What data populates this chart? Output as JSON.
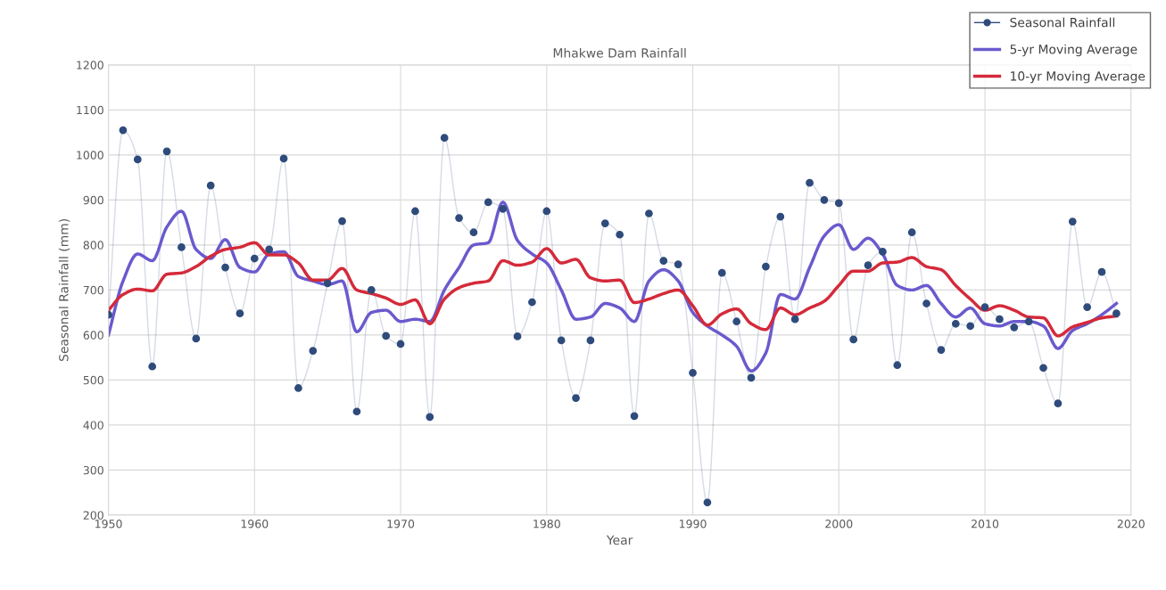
{
  "chart_data": {
    "type": "line",
    "title": "Mhakwe Dam Rainfall",
    "xlabel": "Year",
    "ylabel": "Seasonal Rainfall (mm)",
    "x": [
      1950,
      1951,
      1952,
      1953,
      1954,
      1955,
      1956,
      1957,
      1958,
      1959,
      1960,
      1961,
      1962,
      1963,
      1964,
      1965,
      1966,
      1967,
      1968,
      1969,
      1970,
      1971,
      1972,
      1973,
      1974,
      1975,
      1976,
      1977,
      1978,
      1979,
      1980,
      1981,
      1982,
      1983,
      1984,
      1985,
      1986,
      1987,
      1988,
      1989,
      1990,
      1991,
      1992,
      1993,
      1994,
      1995,
      1996,
      1997,
      1998,
      1999,
      2000,
      2001,
      2002,
      2003,
      2004,
      2005,
      2006,
      2007,
      2008,
      2009,
      2010,
      2011,
      2012,
      2013,
      2014,
      2015,
      2016,
      2017,
      2018,
      2019
    ],
    "series": [
      {
        "name": "Seasonal Rainfall",
        "color": "#2f4b7c",
        "marker": "circle",
        "values": [
          645,
          1055,
          990,
          530,
          1008,
          795,
          592,
          932,
          750,
          648,
          770,
          790,
          992,
          482,
          565,
          715,
          853,
          430,
          700,
          598,
          580,
          875,
          418,
          1038,
          860,
          828,
          895,
          880,
          597,
          673,
          875,
          588,
          460,
          588,
          848,
          823,
          420,
          870,
          765,
          757,
          516,
          228,
          738,
          630,
          505,
          752,
          863,
          635,
          938,
          900,
          893,
          590,
          755,
          785,
          533,
          828,
          670,
          567,
          625,
          620,
          662,
          635,
          617,
          630,
          527,
          448,
          852,
          662,
          740,
          648
        ]
      },
      {
        "name": "5-yr Moving Average",
        "color": "#6a5acd",
        "values": [
          600,
          720,
          780,
          765,
          840,
          875,
          790,
          770,
          812,
          750,
          740,
          780,
          785,
          730,
          720,
          712,
          720,
          607,
          650,
          655,
          630,
          635,
          630,
          700,
          750,
          800,
          805,
          895,
          810,
          780,
          760,
          700,
          635,
          640,
          670,
          660,
          630,
          720,
          745,
          720,
          650,
          620,
          600,
          575,
          520,
          560,
          690,
          680,
          750,
          820,
          845,
          790,
          815,
          780,
          710,
          700,
          710,
          670,
          640,
          660,
          625,
          620,
          630,
          630,
          620,
          570,
          610,
          625,
          645,
          670
        ]
      },
      {
        "name": "10-yr Moving Average",
        "color": "#d42a3a",
        "values": [
          655,
          690,
          702,
          698,
          735,
          738,
          752,
          775,
          790,
          795,
          805,
          778,
          778,
          760,
          722,
          722,
          748,
          700,
          692,
          682,
          668,
          678,
          625,
          680,
          705,
          715,
          720,
          765,
          755,
          762,
          792,
          760,
          768,
          727,
          720,
          722,
          672,
          680,
          692,
          700,
          665,
          622,
          647,
          658,
          625,
          612,
          660,
          645,
          660,
          675,
          710,
          742,
          742,
          760,
          762,
          772,
          752,
          745,
          710,
          680,
          655,
          665,
          655,
          640,
          638,
          598,
          618,
          628,
          638,
          642
        ]
      }
    ],
    "xlim": [
      1950,
      2020
    ],
    "xticks": [
      1950,
      1960,
      1970,
      1980,
      1990,
      2000,
      2010,
      2020
    ],
    "ylim": [
      200,
      1200
    ],
    "yticks": [
      200,
      300,
      400,
      500,
      600,
      700,
      800,
      900,
      1000,
      1100,
      1200
    ],
    "grid": true,
    "legend": "top right"
  }
}
